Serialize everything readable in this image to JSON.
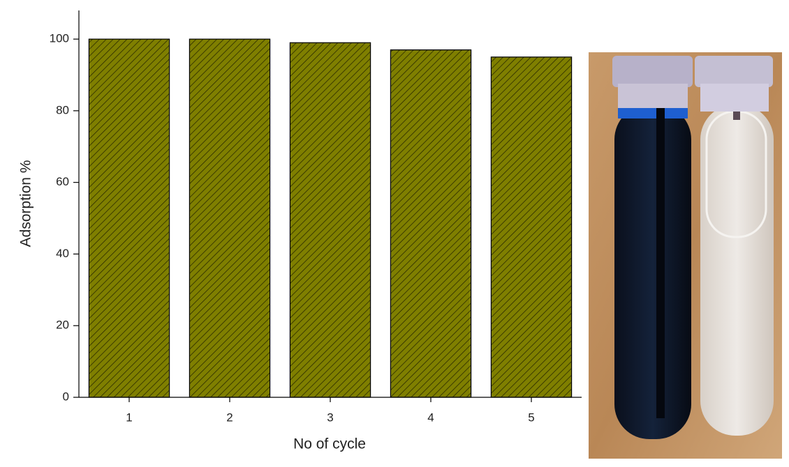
{
  "chart_data": {
    "type": "bar",
    "x_label": "No of cycle",
    "y_label": "Adsorption %",
    "categories": [
      "1",
      "2",
      "3",
      "4",
      "5"
    ],
    "values": [
      100,
      100,
      99,
      97,
      95
    ],
    "color": "#7f7f00",
    "ylim": [
      0,
      108
    ],
    "yticks": [
      0,
      20,
      40,
      60,
      80,
      100
    ],
    "grid": false
  }
}
